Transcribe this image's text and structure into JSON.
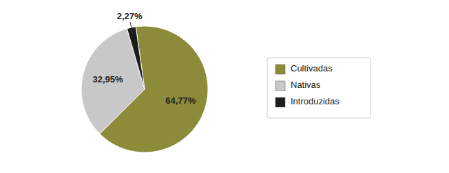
{
  "chart_data": {
    "type": "pie",
    "categories": [
      "Cultivadas",
      "Nativas",
      "Introduzidas"
    ],
    "values": [
      64.77,
      32.95,
      2.27
    ],
    "value_labels": [
      "64,77%",
      "32,95%",
      "2,27%"
    ],
    "colors": [
      "#8B8B3A",
      "#C8C8C8",
      "#1C1C1C"
    ],
    "data_labels": true,
    "legend": "right"
  }
}
